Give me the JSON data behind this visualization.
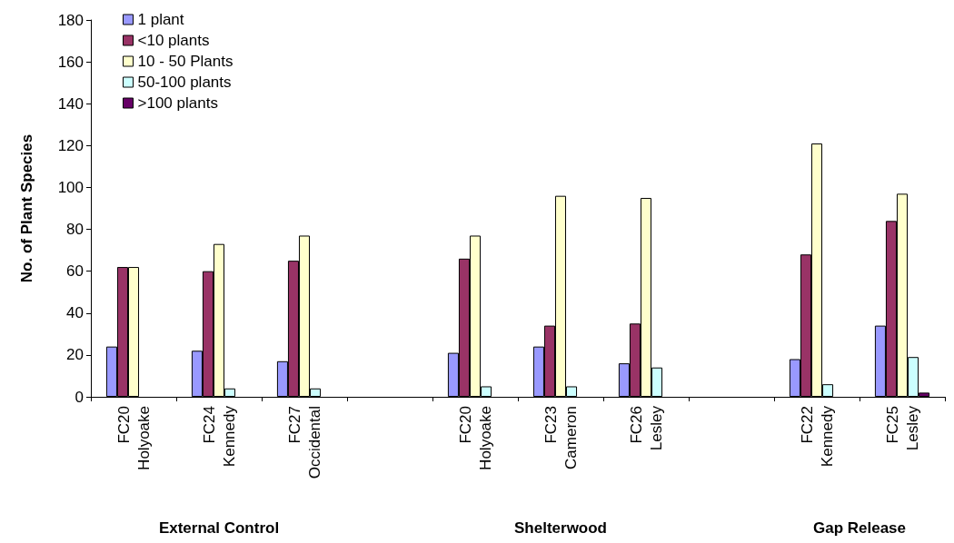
{
  "chart_data": {
    "type": "bar",
    "ylabel": "No. of Plant Species",
    "categories": [
      "FC20 Holyoake",
      "FC24 Kennedy",
      "FC27 Occidental",
      null,
      "FC20 Holyoake",
      "FC23 Cameron",
      "FC26 Lesley",
      null,
      "FC22 Kennedy",
      "FC25 Lesley"
    ],
    "series": [
      {
        "name": "1 plant",
        "color": "#9999ff",
        "values": [
          24,
          22,
          17,
          null,
          21,
          24,
          16,
          null,
          18,
          34
        ]
      },
      {
        "name": "<10 plants",
        "color": "#993366",
        "values": [
          62,
          60,
          65,
          null,
          66,
          34,
          35,
          null,
          68,
          84
        ]
      },
      {
        "name": "10 - 50 Plants",
        "color": "#ffffcc",
        "values": [
          62,
          73,
          77,
          null,
          77,
          96,
          95,
          null,
          121,
          97
        ]
      },
      {
        "name": "50-100 plants",
        "color": "#ccffff",
        "values": [
          null,
          4,
          4,
          null,
          5,
          5,
          14,
          null,
          6,
          19
        ]
      },
      {
        "name": ">100 plants",
        "color": "#660066",
        "values": [
          null,
          null,
          null,
          null,
          null,
          null,
          null,
          null,
          null,
          2
        ]
      }
    ],
    "annotations": [
      "External Control",
      "Shelterwood",
      "Gap Release"
    ],
    "ylim": [
      0,
      180
    ],
    "yticks": [
      0,
      20,
      40,
      60,
      80,
      100,
      120,
      140,
      160,
      180
    ],
    "grid": false,
    "legend": "top left"
  }
}
